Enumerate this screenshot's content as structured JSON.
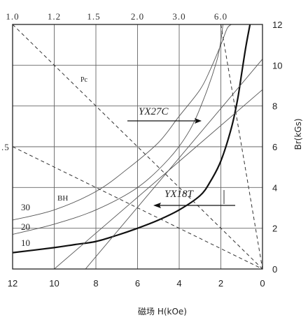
{
  "chart_data": {
    "type": "line",
    "title": "",
    "xlabel": "磁场 H(kOe)",
    "ylabel": "Br(kGs)",
    "xlim": [
      12,
      0
    ],
    "ylim": [
      0,
      12
    ],
    "x_reversed": true,
    "grid": true,
    "x_ticks": [
      "12",
      "10",
      "8",
      "6",
      "4",
      "2",
      "0"
    ],
    "y_ticks": [
      "0",
      "2",
      "4",
      "6",
      "8",
      "10",
      "12"
    ],
    "top_ticks": [
      {
        "label": "1.0",
        "at_x": 12
      },
      {
        "label": "1.2",
        "at_x": 10
      },
      {
        "label": "1.5",
        "at_x": 8.1
      },
      {
        "label": "2.0",
        "at_x": 6
      },
      {
        "label": "3.0",
        "at_x": 4
      },
      {
        "label": "6.0",
        "at_x": 2
      }
    ],
    "left_extra_tick": {
      "label": ".5",
      "at_y": 6
    },
    "series": [
      {
        "name": "YX18T",
        "style": "solid-bold",
        "x": [
          12,
          10,
          9,
          8,
          7,
          6,
          5,
          4,
          3,
          2.5,
          2,
          1.5,
          1.2,
          1,
          0.8,
          0.6
        ],
        "y": [
          0.8,
          1.05,
          1.2,
          1.35,
          1.65,
          2.0,
          2.4,
          2.9,
          3.6,
          4.3,
          5.3,
          6.9,
          8.3,
          9.6,
          10.9,
          12
        ]
      },
      {
        "name": "YX27C",
        "style": "solid-thin",
        "x": [
          12,
          10,
          8,
          6.5,
          5,
          4,
          3,
          2.5,
          2,
          1.7,
          1.5
        ],
        "y": [
          2.4,
          2.9,
          3.8,
          4.9,
          6.2,
          7.5,
          8.8,
          9.8,
          11.0,
          11.8,
          12
        ]
      },
      {
        "name": "",
        "style": "solid-thin",
        "x": [
          12,
          10,
          8,
          6,
          4.5,
          3.5,
          2.8,
          2.2,
          2.0,
          1.9
        ],
        "y": [
          1.7,
          2.2,
          2.9,
          4.0,
          5.4,
          6.8,
          8.4,
          10.2,
          11.2,
          12
        ]
      },
      {
        "name": "",
        "style": "solid-thin",
        "x": [
          10,
          0
        ],
        "y": [
          0,
          8.8
        ]
      },
      {
        "name": "",
        "style": "solid-thin",
        "x": [
          8.5,
          0
        ],
        "y": [
          0,
          10.3
        ]
      },
      {
        "name": "",
        "style": "dashed",
        "x": [
          12,
          0
        ],
        "y": [
          12,
          0
        ]
      },
      {
        "name": "",
        "style": "dashed",
        "x": [
          12,
          0
        ],
        "y": [
          6,
          0
        ]
      },
      {
        "name": "",
        "style": "dashed",
        "x": [
          2,
          0
        ],
        "y": [
          12,
          0
        ]
      }
    ],
    "annotations": {
      "pc": "Pc",
      "bh": "BH",
      "bh_values": [
        "30",
        "20",
        "10"
      ],
      "yx27c": "YX27C",
      "yx18t": "YX18T"
    }
  }
}
